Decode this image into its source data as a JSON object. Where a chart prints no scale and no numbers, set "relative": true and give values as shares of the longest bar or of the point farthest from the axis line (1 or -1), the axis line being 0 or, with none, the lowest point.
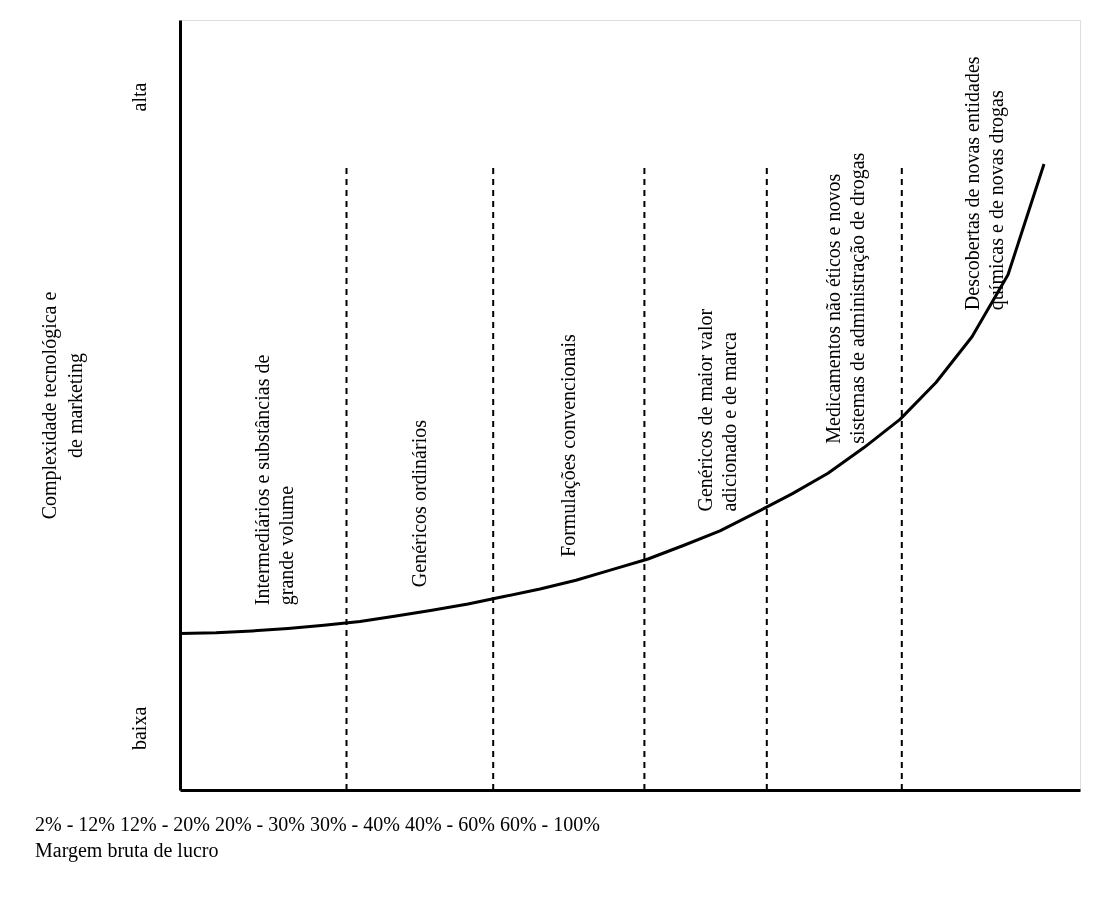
{
  "chart_data": {
    "type": "line",
    "relative": true,
    "xlabel": "Margem bruta de lucro",
    "ylabel": "Complexidade tecnológica e\nde marketing",
    "categories": [
      null,
      null,
      null,
      null,
      null,
      null,
      null,
      null,
      null,
      null,
      null,
      null,
      null,
      null,
      null,
      null,
      null,
      null,
      null,
      null,
      null,
      null,
      null,
      null,
      null
    ],
    "series": [
      {
        "color": "#000000",
        "values": [
          0.25,
          0.251,
          0.254,
          0.258,
          0.263,
          0.269,
          0.278,
          0.287,
          0.297,
          0.309,
          0.321,
          0.335,
          0.352,
          0.369,
          0.391,
          0.414,
          0.443,
          0.473,
          0.506,
          0.547,
          0.592,
          0.651,
          0.724,
          0.823,
          1
        ]
      }
    ],
    "tick_labels": false,
    "marker": "none",
    "line_style": "solid",
    "annotations": [
      "Intermediários e substâncias de\ngrande volume",
      "Genéricos ordinários",
      "Formulações convencionais",
      "Genéricos de maior valor\nadicionado e de marca",
      "Medicamentos não éticos e novos\nsistemas de administração de drogas",
      "Descobertas de novas entidades\nquímicas e de novas drogas",
      "2% - 12% 12% - 20% 20% - 30% 30% - 40% 40% - 60% 60% - 100%",
      "baixa",
      "alta"
    ]
  }
}
